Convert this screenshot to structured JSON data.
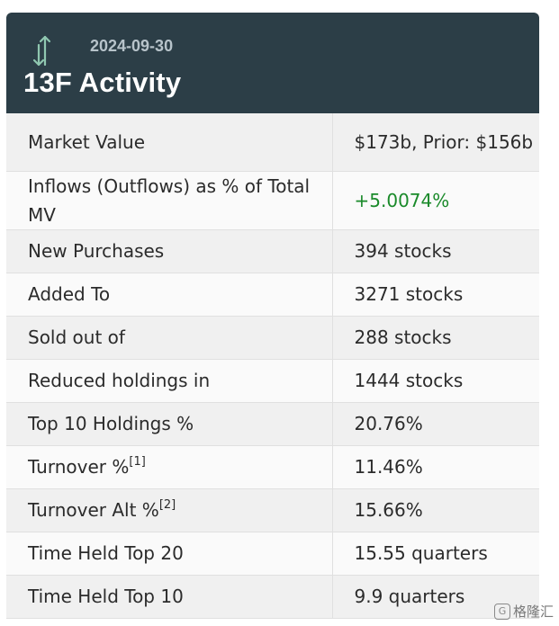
{
  "header": {
    "date": "2024-09-30",
    "title": "13F Activity",
    "icon": "up-down-arrows-icon"
  },
  "rows": [
    {
      "label": "Market Value",
      "value": "$173b, Prior: $156b"
    },
    {
      "label": "Inflows (Outflows) as % of Total MV",
      "value": "+5.0074%"
    },
    {
      "label": "New Purchases",
      "value": "394 stocks"
    },
    {
      "label": "Added To",
      "value": "3271 stocks"
    },
    {
      "label": "Sold out of",
      "value": "288 stocks"
    },
    {
      "label": "Reduced holdings in",
      "value": "1444 stocks"
    },
    {
      "label": "Top 10 Holdings %",
      "value": "20.76%"
    },
    {
      "label": "Turnover %",
      "sup": "[1]",
      "value": "11.46%"
    },
    {
      "label": "Turnover Alt %",
      "sup": "[2]",
      "value": "15.66%"
    },
    {
      "label": "Time Held Top 20",
      "value": "15.55 quarters"
    },
    {
      "label": "Time Held Top 10",
      "value": "9.9 quarters"
    }
  ],
  "colors": {
    "header_bg": "#2c3e47",
    "positive": "#1a8a2a"
  },
  "watermark": {
    "text": "格隆汇",
    "logo": "G"
  }
}
